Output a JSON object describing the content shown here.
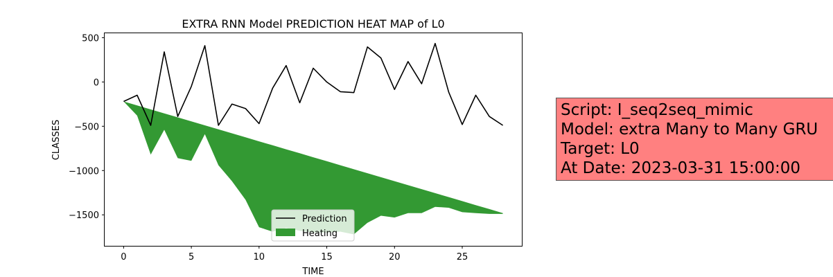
{
  "chart_data": {
    "type": "line",
    "title": "EXTRA RNN Model PREDICTION HEAT MAP of L0",
    "xlabel": "TIME",
    "ylabel": "CLASSES",
    "xlim": [
      -1.4,
      29.4
    ],
    "ylim": [
      -1850,
      550
    ],
    "xticks": [
      0,
      5,
      10,
      15,
      20,
      25
    ],
    "yticks": [
      500,
      0,
      -500,
      -1000,
      -1500
    ],
    "ytick_labels": [
      "500",
      "0",
      "−500",
      "−1000",
      "−1500"
    ],
    "grid": false,
    "legend_position": "bottom-center",
    "x": [
      0,
      1,
      2,
      3,
      4,
      5,
      6,
      7,
      8,
      9,
      10,
      11,
      12,
      13,
      14,
      15,
      16,
      17,
      18,
      19,
      20,
      21,
      22,
      23,
      24,
      25,
      26,
      27,
      28
    ],
    "series": [
      {
        "name": "Prediction",
        "kind": "line",
        "color": "#000000",
        "values": [
          -220,
          -150,
          -490,
          340,
          -390,
          -50,
          410,
          -490,
          -250,
          -300,
          -470,
          -70,
          185,
          -235,
          155,
          0,
          -110,
          -120,
          395,
          270,
          -85,
          230,
          -20,
          435,
          -115,
          -480,
          -150,
          -390,
          -490
        ]
      },
      {
        "name": "Heating",
        "kind": "area",
        "color": "#339933",
        "upper": [
          -220,
          -265,
          -310,
          -355,
          -400,
          -445,
          -490,
          -535,
          -580,
          -625,
          -670,
          -715,
          -760,
          -805,
          -850,
          -895,
          -940,
          -985,
          -1030,
          -1075,
          -1120,
          -1165,
          -1210,
          -1255,
          -1300,
          -1345,
          -1390,
          -1435,
          -1480
        ],
        "lower": [
          -220,
          -380,
          -820,
          -540,
          -860,
          -890,
          -590,
          -940,
          -1120,
          -1330,
          -1640,
          -1690,
          -1650,
          -1680,
          -1700,
          -1700,
          -1690,
          -1720,
          -1590,
          -1510,
          -1530,
          -1480,
          -1480,
          -1410,
          -1420,
          -1470,
          -1480,
          -1490,
          -1490
        ]
      }
    ]
  },
  "info_box": {
    "script": "Script: I_seq2seq_mimic",
    "model": "Model: extra Many to Many GRU",
    "target": "Target: L0",
    "date": "At Date: 2023-03-31 15:00:00"
  }
}
